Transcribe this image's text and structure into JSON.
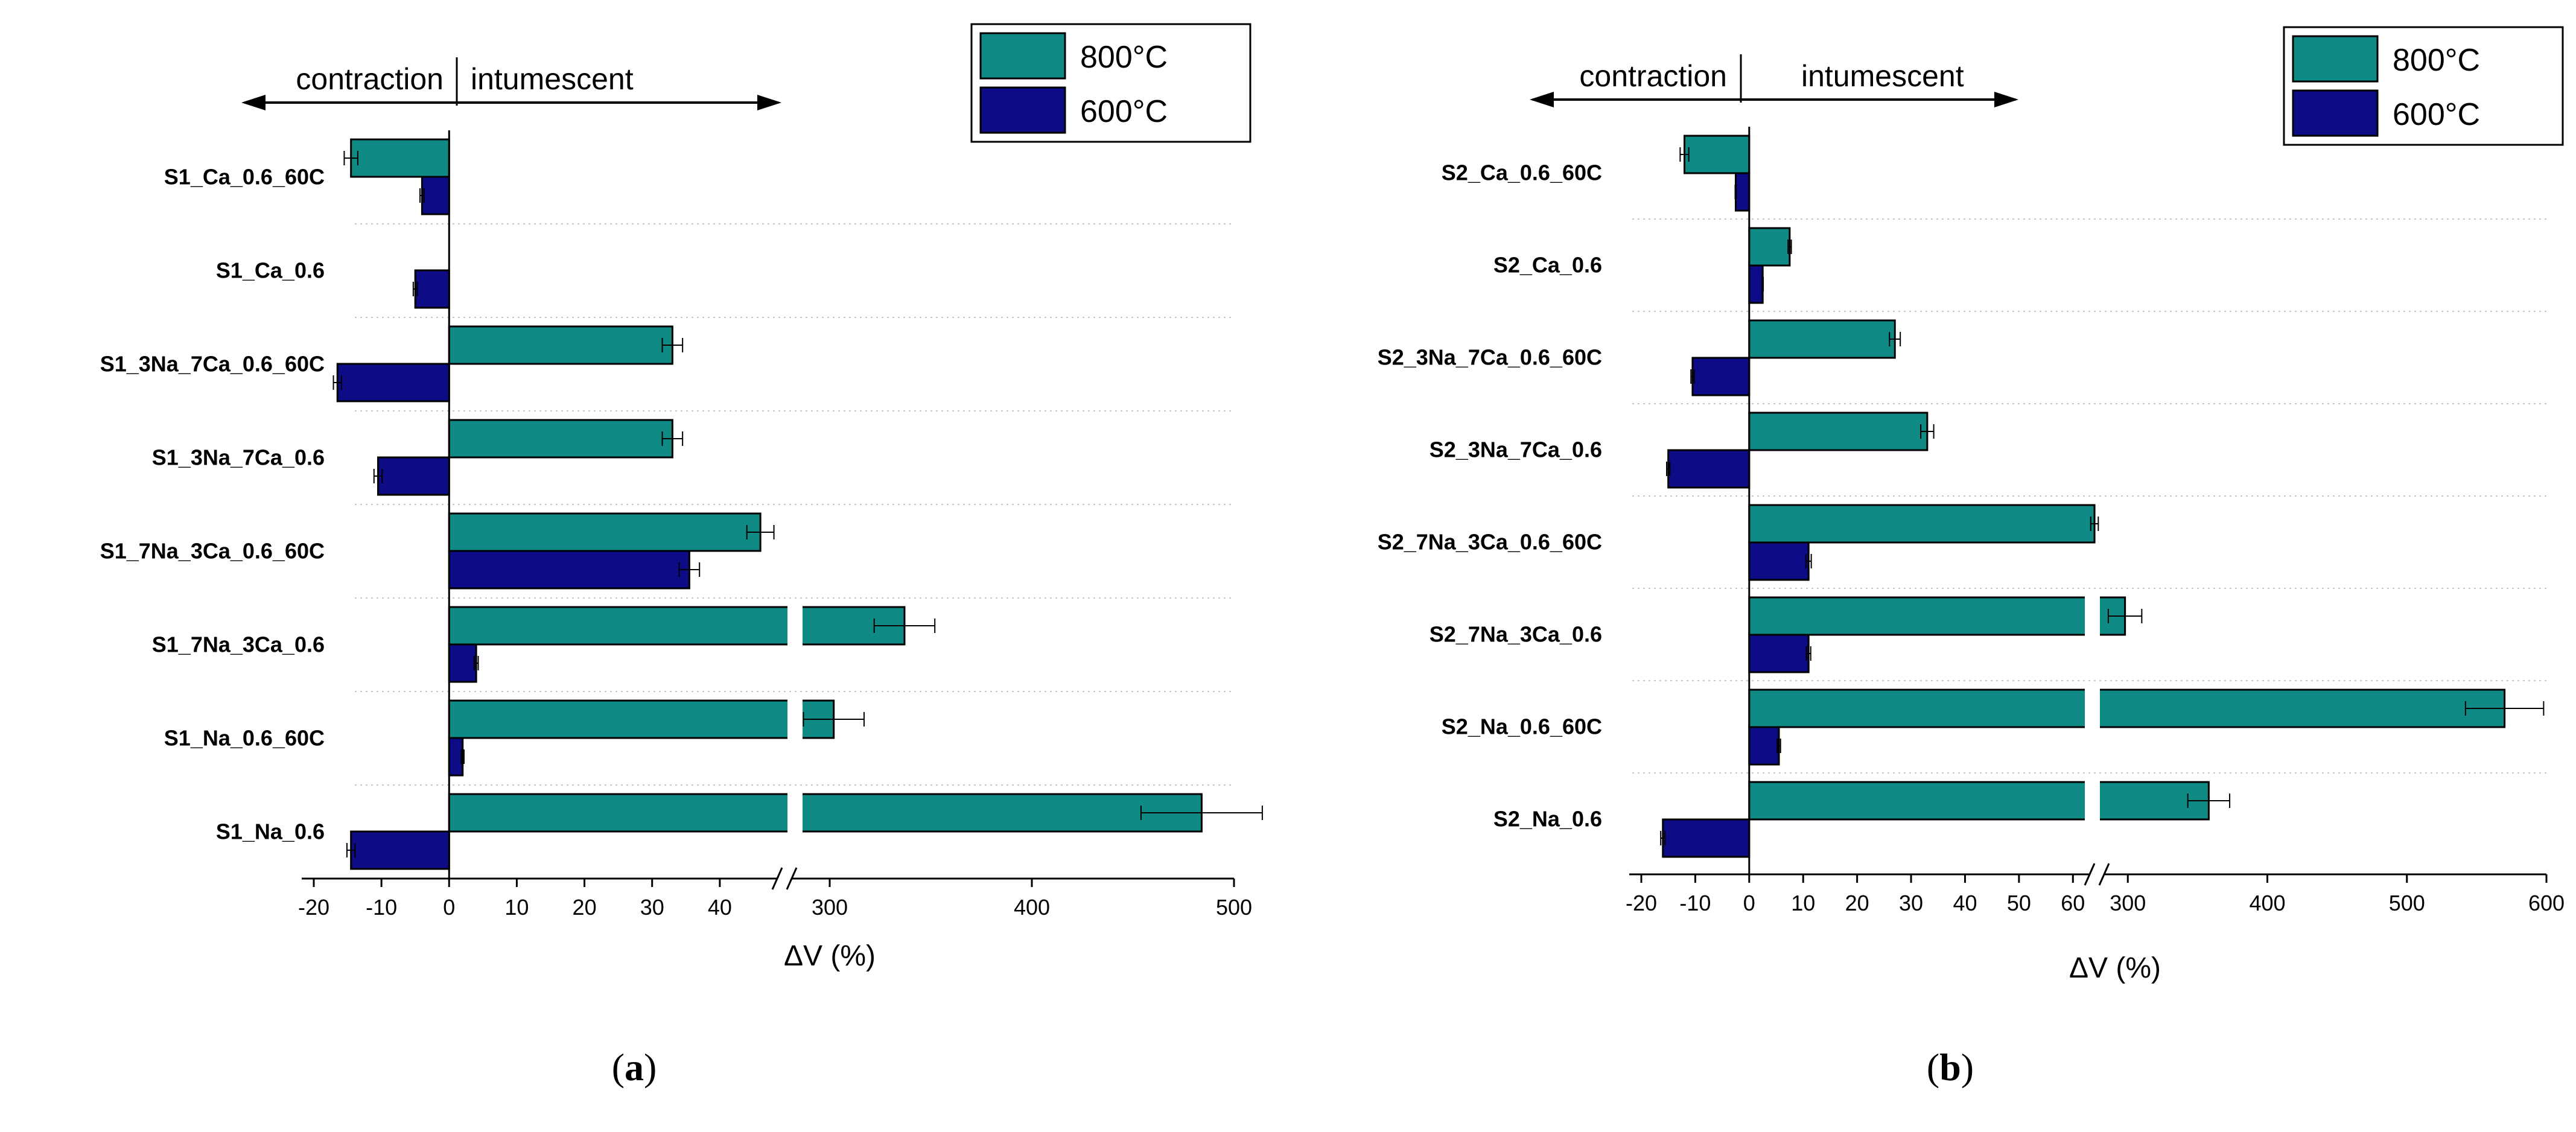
{
  "chart_data": [
    {
      "panel_label": "a",
      "type": "bar",
      "orientation": "horizontal",
      "categories": [
        "S1_Na_0.6",
        "S1_Na_0.6_60C",
        "S1_7Na_3Ca_0.6",
        "S1_7Na_3Ca_0.6_60C",
        "S1_3Na_7Ca_0.6",
        "S1_3Na_7Ca_0.6_60C",
        "S1_Ca_0.6",
        "S1_Ca_0.6_60C"
      ],
      "series": [
        {
          "name": "800°C",
          "color": "#108a85",
          "values": [
            484,
            302,
            337,
            46,
            33,
            33,
            0,
            -14.5
          ],
          "errors": [
            30,
            15,
            15,
            2,
            1.5,
            1.5,
            0,
            1
          ]
        },
        {
          "name": "600°C",
          "color": "#0d0b85",
          "values": [
            -14.5,
            2,
            4,
            35.5,
            -10.5,
            -16.5,
            -5,
            -4
          ],
          "errors": [
            0.6,
            0.2,
            0.3,
            1.5,
            0.6,
            0.6,
            0.3,
            0.3
          ]
        }
      ],
      "x_axis": {
        "label": "ΔV (%)",
        "broken": true,
        "segments": [
          [
            -20,
            50
          ],
          [
            280,
            500
          ]
        ],
        "ticks": [
          -20,
          -10,
          0,
          10,
          20,
          30,
          40,
          300,
          400,
          500
        ],
        "tick_labels": [
          "-20",
          "-10",
          "0",
          "10",
          "20",
          "30",
          "40",
          "300",
          "400",
          "500"
        ]
      },
      "annotations": {
        "left": "contraction",
        "right": "intumescent"
      },
      "legend": {
        "position": "top-right",
        "entries": [
          "800°C",
          "600°C"
        ]
      }
    },
    {
      "panel_label": "b",
      "type": "bar",
      "orientation": "horizontal",
      "categories": [
        "S2_Na_0.6",
        "S2_Na_0.6_60C",
        "S2_7Na_3Ca_0.6",
        "S2_7Na_3Ca_0.6_60C",
        "S2_3Na_7Ca_0.6",
        "S2_3Na_7Ca_0.6_60C",
        "S2_Ca_0.6",
        "S2_Ca_0.6_60C"
      ],
      "series": [
        {
          "name": "800°C",
          "color": "#108a85",
          "values": [
            358,
            570,
            298,
            64,
            33,
            27,
            7.5,
            -12
          ],
          "errors": [
            15,
            28,
            12,
            0.7,
            1.2,
            1,
            0.3,
            0.8
          ]
        },
        {
          "name": "600°C",
          "color": "#0d0b85",
          "values": [
            -16,
            5.5,
            11,
            11,
            -15,
            -10.5,
            2.5,
            -2.5
          ],
          "errors": [
            0.4,
            0.3,
            0.4,
            0.5,
            0.3,
            0.3,
            0.1,
            0.1
          ]
        }
      ],
      "x_axis": {
        "label": "ΔV (%)",
        "broken": true,
        "segments": [
          [
            -20,
            65
          ],
          [
            280,
            600
          ]
        ],
        "ticks": [
          -20,
          -10,
          0,
          10,
          20,
          30,
          40,
          50,
          60,
          300,
          400,
          500,
          600
        ],
        "tick_labels": [
          "-20",
          "-10",
          "0",
          "10",
          "20",
          "30",
          "40",
          "50",
          "60",
          "300",
          "400",
          "500",
          "600"
        ]
      },
      "annotations": {
        "left": "contraction",
        "right": "intumescent"
      },
      "legend": {
        "position": "top-right",
        "entries": [
          "800°C",
          "600°C"
        ]
      }
    }
  ]
}
